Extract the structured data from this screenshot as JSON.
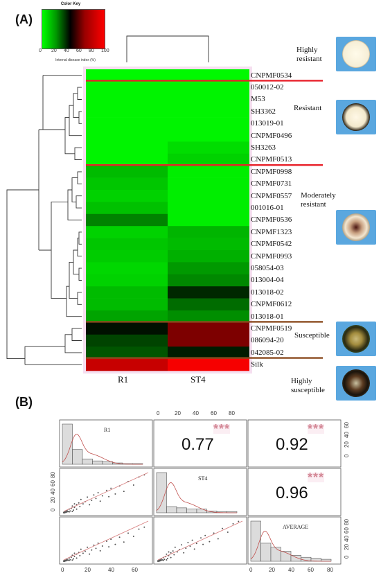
{
  "panels": {
    "a": "(A)",
    "b": "(B)"
  },
  "color_key": {
    "title": "Color Key",
    "xlabel": "Internal disease index (%)",
    "ticks": [
      "0",
      "20",
      "40",
      "60",
      "80",
      "100"
    ]
  },
  "categories": [
    {
      "label": "Highly\nresistant"
    },
    {
      "label": "Resistant"
    },
    {
      "label": "Moderately\nresistant"
    },
    {
      "label": "Susceptible"
    },
    {
      "label": "Highly\nsusceptible"
    }
  ],
  "chart_data": [
    {
      "type": "heatmap",
      "columns": [
        "R1",
        "ST4"
      ],
      "scale": [
        0,
        100
      ],
      "colors": {
        "low": "#00ff00",
        "mid": "#000000",
        "high": "#ff0000"
      },
      "rows": [
        {
          "name": "CNPMF0534",
          "values": [
            1,
            1
          ]
        },
        {
          "name": "050012-02",
          "values": [
            2,
            2
          ]
        },
        {
          "name": "M53",
          "values": [
            2,
            2
          ]
        },
        {
          "name": "SH3362",
          "values": [
            2,
            2
          ]
        },
        {
          "name": "013019-01",
          "values": [
            2,
            2
          ]
        },
        {
          "name": "CNPMF0496",
          "values": [
            2,
            2
          ]
        },
        {
          "name": "SH3263",
          "values": [
            2,
            6
          ]
        },
        {
          "name": "CNPMF0513",
          "values": [
            2,
            8
          ]
        },
        {
          "name": "CNPMF0998",
          "values": [
            12,
            3
          ]
        },
        {
          "name": "CNPMF0731",
          "values": [
            10,
            3
          ]
        },
        {
          "name": "CNPMF0557",
          "values": [
            8,
            3
          ]
        },
        {
          "name": "001016-01",
          "values": [
            11,
            3
          ]
        },
        {
          "name": "CNPMF0536",
          "values": [
            22,
            3
          ]
        },
        {
          "name": "CNPMF1323",
          "values": [
            8,
            13
          ]
        },
        {
          "name": "CNPMF0542",
          "values": [
            10,
            12
          ]
        },
        {
          "name": "CNPMF0993",
          "values": [
            9,
            14
          ]
        },
        {
          "name": "058054-03",
          "values": [
            7,
            18
          ]
        },
        {
          "name": "013004-04",
          "values": [
            8,
            21
          ]
        },
        {
          "name": "013018-02",
          "values": [
            12,
            38
          ]
        },
        {
          "name": "CNPMF0612",
          "values": [
            12,
            26
          ]
        },
        {
          "name": "013018-01",
          "values": [
            16,
            20
          ]
        },
        {
          "name": "CNPMF0519",
          "values": [
            42,
            72
          ]
        },
        {
          "name": "086094-20",
          "values": [
            33,
            72
          ]
        },
        {
          "name": "042085-02",
          "values": [
            30,
            40
          ]
        },
        {
          "name": "Silk",
          "values": [
            88,
            98
          ]
        }
      ]
    },
    {
      "type": "scatter",
      "matrix_variables": [
        "R1",
        "ST4",
        "AVERAGE"
      ],
      "correlations": [
        {
          "pair": [
            "R1",
            "ST4"
          ],
          "r": "0.77",
          "significance": "***"
        },
        {
          "pair": [
            "R1",
            "AVERAGE"
          ],
          "r": "0.92",
          "significance": "***"
        },
        {
          "pair": [
            "ST4",
            "AVERAGE"
          ],
          "r": "0.96",
          "significance": "***"
        }
      ],
      "axis_ticks": {
        "top": [
          "0",
          "20",
          "40",
          "60",
          "80"
        ],
        "right_top": [
          "60",
          "40",
          "20",
          "0"
        ],
        "left_mid": [
          "80",
          "60",
          "40",
          "20",
          "0"
        ],
        "right_bottom": [
          "80",
          "60",
          "40",
          "20",
          "0"
        ],
        "bottom_left": [
          "0",
          "20",
          "40",
          "60"
        ],
        "bottom_right": [
          "0",
          "20",
          "40",
          "60",
          "80"
        ]
      },
      "histograms": {
        "R1": {
          "range": [
            0,
            75
          ],
          "counts": [
            60,
            22,
            8,
            5,
            4,
            2,
            1,
            1
          ]
        },
        "ST4": {
          "range": [
            0,
            90
          ],
          "counts": [
            65,
            10,
            8,
            6,
            6,
            3,
            2,
            2
          ]
        },
        "AVERAGE": {
          "range": [
            0,
            80
          ],
          "counts": [
            40,
            18,
            14,
            10,
            6,
            4,
            3,
            2
          ]
        }
      },
      "points": [
        [
          0,
          0
        ],
        [
          0,
          1
        ],
        [
          1,
          0
        ],
        [
          1,
          2
        ],
        [
          2,
          1
        ],
        [
          2,
          3
        ],
        [
          3,
          2
        ],
        [
          3,
          5
        ],
        [
          4,
          3
        ],
        [
          5,
          8
        ],
        [
          5,
          2
        ],
        [
          6,
          4
        ],
        [
          7,
          10
        ],
        [
          8,
          3
        ],
        [
          8,
          15
        ],
        [
          9,
          6
        ],
        [
          10,
          12
        ],
        [
          10,
          20
        ],
        [
          12,
          8
        ],
        [
          12,
          18
        ],
        [
          14,
          22
        ],
        [
          15,
          14
        ],
        [
          16,
          30
        ],
        [
          18,
          20
        ],
        [
          20,
          25
        ],
        [
          22,
          35
        ],
        [
          24,
          18
        ],
        [
          26,
          28
        ],
        [
          28,
          40
        ],
        [
          30,
          32
        ],
        [
          32,
          45
        ],
        [
          34,
          26
        ],
        [
          36,
          38
        ],
        [
          40,
          50
        ],
        [
          42,
          36
        ],
        [
          44,
          55
        ],
        [
          48,
          42
        ],
        [
          52,
          60
        ],
        [
          56,
          48
        ],
        [
          60,
          70
        ],
        [
          65,
          62
        ],
        [
          70,
          80
        ],
        [
          75,
          85
        ]
      ]
    }
  ]
}
